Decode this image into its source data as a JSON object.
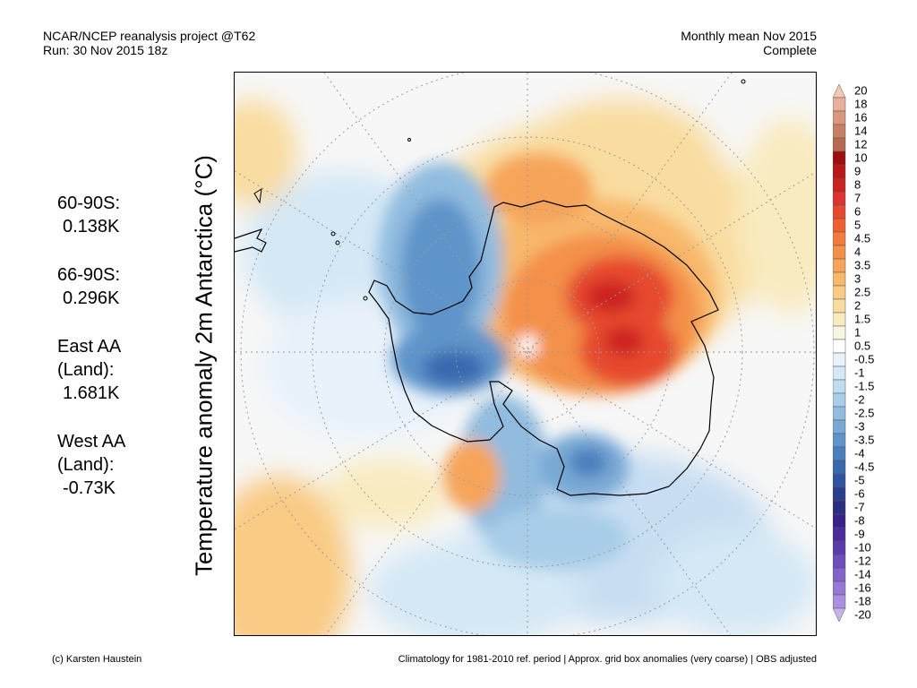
{
  "header": {
    "line1": "NCAR/NCEP reanalysis project @T62",
    "line2": "Run: 30 Nov 2015 18z",
    "right1": "Monthly mean Nov 2015",
    "right2": "Complete"
  },
  "stats": [
    {
      "label": "60-90S:",
      "value": "0.138K"
    },
    {
      "label": "66-90S:",
      "value": "0.296K"
    },
    {
      "label": "East AA\n(Land):",
      "value": "1.681K"
    },
    {
      "label": "West AA\n(Land):",
      "value": "-0.73K"
    }
  ],
  "ylabel": "Temperature anomaly 2m Antarctica (°C)",
  "colorbar": {
    "labels": [
      "20",
      "18",
      "16",
      "14",
      "12",
      "10",
      "9",
      "8",
      "7",
      "6",
      "5",
      "4.5",
      "4",
      "3.5",
      "3",
      "2.5",
      "2",
      "1.5",
      "1",
      "0.5",
      "-0.5",
      "-1",
      "-1.5",
      "-2",
      "-2.5",
      "-3",
      "-3.5",
      "-4",
      "-4.5",
      "-5",
      "-6",
      "-7",
      "-8",
      "-9",
      "-10",
      "-12",
      "-14",
      "-16",
      "-18",
      "-20"
    ],
    "colors": [
      "#f0c8b4",
      "#e6b09a",
      "#d9987e",
      "#c88064",
      "#b86a50",
      "#9e1010",
      "#b81818",
      "#cc2222",
      "#dd3333",
      "#e64a2e",
      "#ee6030",
      "#f17a3c",
      "#f4904a",
      "#f6a45a",
      "#f8b86c",
      "#f9cb84",
      "#f9dc9f",
      "#f9ebc0",
      "#f8f5e2",
      "#ffffff",
      "#e8f2fb",
      "#d4e8f6",
      "#c0dcf0",
      "#a9cde8",
      "#91bcdf",
      "#78a9d5",
      "#5f94ca",
      "#4a7fbe",
      "#3a69b0",
      "#2f549f",
      "#2b3f8e",
      "#2a2e80",
      "#38218a",
      "#4a2a9c",
      "#5b3aab",
      "#6d4ebc",
      "#8163c9",
      "#9679d5",
      "#ab90df",
      "#c6b2ea"
    ]
  },
  "map": {
    "region": "Antarctica",
    "land_outline_color": "#000000",
    "warm_center_color": "#cc2222",
    "cold_center_color": "#3a69b0"
  },
  "footer": {
    "left": "(c) Karsten Haustein",
    "right": "Climatology for 1981-2010 ref. period | Approx. grid box anomalies (very coarse) | OBS adjusted"
  }
}
